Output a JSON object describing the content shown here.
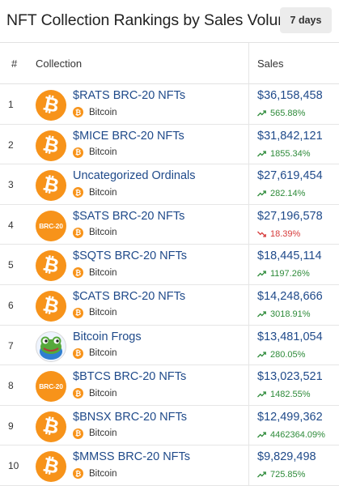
{
  "title": "NFT Collection Rankings by Sales Volume",
  "range_button": "7 days",
  "columns": {
    "rank": "#",
    "collection": "Collection",
    "sales": "Sales"
  },
  "colors": {
    "bitcoin": "#f7931a",
    "link": "#1f4a8a",
    "up": "#2e8b3a",
    "down": "#d63b3b"
  },
  "rows": [
    {
      "rank": "1",
      "name": "$RATS BRC-20 NFTs",
      "chain": "Bitcoin",
      "sales": "$36,158,458",
      "change": "565.88%",
      "direction": "up",
      "logo": "bitcoin-icon"
    },
    {
      "rank": "2",
      "name": "$MICE BRC-20 NFTs",
      "chain": "Bitcoin",
      "sales": "$31,842,121",
      "change": "1855.34%",
      "direction": "up",
      "logo": "bitcoin-icon"
    },
    {
      "rank": "3",
      "name": "Uncategorized Ordinals",
      "chain": "Bitcoin",
      "sales": "$27,619,454",
      "change": "282.14%",
      "direction": "up",
      "logo": "bitcoin-icon"
    },
    {
      "rank": "4",
      "name": "$SATS BRC-20 NFTs",
      "chain": "Bitcoin",
      "sales": "$27,196,578",
      "change": "18.39%",
      "direction": "down",
      "logo": "brc20-icon",
      "logo_text": "BRC-20"
    },
    {
      "rank": "5",
      "name": "$SQTS BRC-20 NFTs",
      "chain": "Bitcoin",
      "sales": "$18,445,114",
      "change": "1197.26%",
      "direction": "up",
      "logo": "bitcoin-icon"
    },
    {
      "rank": "6",
      "name": "$CATS BRC-20 NFTs",
      "chain": "Bitcoin",
      "sales": "$14,248,666",
      "change": "3018.91%",
      "direction": "up",
      "logo": "bitcoin-icon"
    },
    {
      "rank": "7",
      "name": "Bitcoin Frogs",
      "chain": "Bitcoin",
      "sales": "$13,481,054",
      "change": "280.05%",
      "direction": "up",
      "logo": "frog-icon"
    },
    {
      "rank": "8",
      "name": "$BTCS BRC-20 NFTs",
      "chain": "Bitcoin",
      "sales": "$13,023,521",
      "change": "1482.55%",
      "direction": "up",
      "logo": "brc20-icon",
      "logo_text": "BRC-20"
    },
    {
      "rank": "9",
      "name": "$BNSX BRC-20 NFTs",
      "chain": "Bitcoin",
      "sales": "$12,499,362",
      "change": "4462364.09%",
      "direction": "up",
      "logo": "bitcoin-icon"
    },
    {
      "rank": "10",
      "name": "$MMSS BRC-20 NFTs",
      "chain": "Bitcoin",
      "sales": "$9,829,498",
      "change": "725.85%",
      "direction": "up",
      "logo": "bitcoin-icon"
    }
  ]
}
